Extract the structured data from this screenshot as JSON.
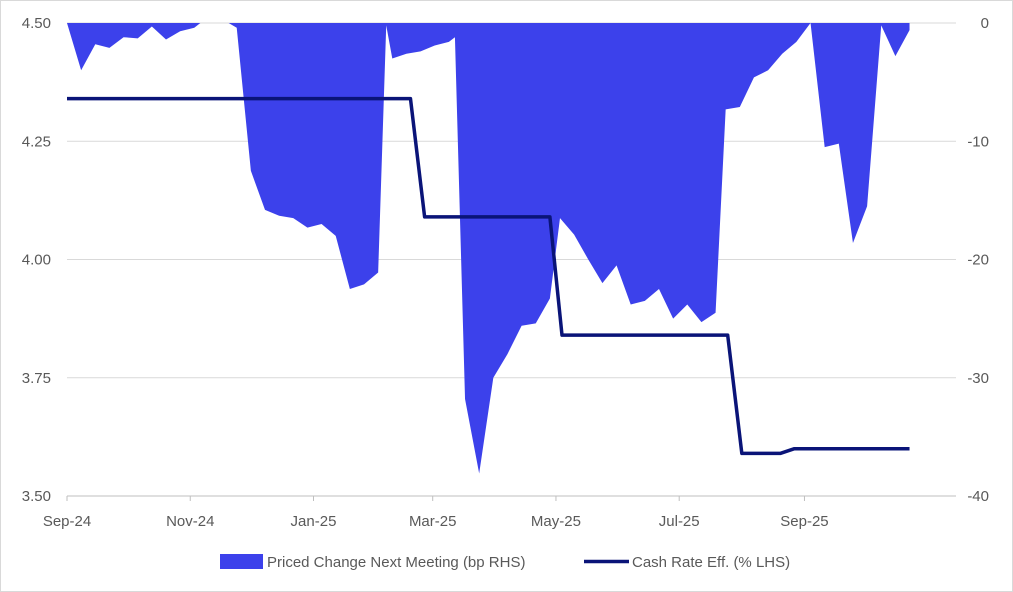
{
  "chart_data": {
    "type": "area+line",
    "x_axis": {
      "tick_labels": [
        "Sep-24",
        "Nov-24",
        "Jan-25",
        "Mar-25",
        "May-25",
        "Jul-25",
        "Sep-25"
      ],
      "tick_dates": [
        "2024-09-01",
        "2024-11-01",
        "2025-01-01",
        "2025-03-01",
        "2025-05-01",
        "2025-07-01",
        "2025-09-01"
      ],
      "range": [
        "2024-09-01",
        "2025-11-15"
      ]
    },
    "y_left": {
      "range": [
        3.5,
        4.5
      ],
      "ticks": [
        3.5,
        3.75,
        4.0,
        4.25,
        4.5
      ],
      "tick_labels": [
        "3.50",
        "3.75",
        "4.00",
        "4.25",
        "4.50"
      ]
    },
    "y_right": {
      "range": [
        -40,
        0
      ],
      "ticks": [
        -40,
        -30,
        -20,
        -10,
        0
      ],
      "tick_labels": [
        "-40",
        "-30",
        "-20",
        "-10",
        "0"
      ]
    },
    "grid": {
      "horizontal": true,
      "vertical": false
    },
    "legend": {
      "position": "bottom"
    },
    "series": [
      {
        "name": "Priced Change Next Meeting (bp RHS)",
        "kind": "area",
        "axis": "right",
        "color": "#3c41eb",
        "points": [
          [
            "2024-09-01",
            0
          ],
          [
            "2024-09-08",
            -4
          ],
          [
            "2024-09-15",
            -1.8
          ],
          [
            "2024-09-22",
            -2.1
          ],
          [
            "2024-09-29",
            -1.2
          ],
          [
            "2024-10-06",
            -1.3
          ],
          [
            "2024-10-13",
            -0.3
          ],
          [
            "2024-10-20",
            -1.4
          ],
          [
            "2024-10-27",
            -0.7
          ],
          [
            "2024-11-03",
            -0.4
          ],
          [
            "2024-11-06",
            0
          ],
          [
            "2024-11-20",
            0
          ],
          [
            "2024-11-24",
            -0.4
          ],
          [
            "2024-12-01",
            -12.5
          ],
          [
            "2024-12-08",
            -15.8
          ],
          [
            "2024-12-15",
            -16.3
          ],
          [
            "2024-12-22",
            -16.5
          ],
          [
            "2024-12-29",
            -17.3
          ],
          [
            "2025-01-05",
            -17
          ],
          [
            "2025-01-12",
            -18
          ],
          [
            "2025-01-19",
            -22.5
          ],
          [
            "2025-01-26",
            -22.1
          ],
          [
            "2025-02-02",
            -21.1
          ],
          [
            "2025-02-06",
            -0.2
          ],
          [
            "2025-02-09",
            -3
          ],
          [
            "2025-02-16",
            -2.6
          ],
          [
            "2025-02-23",
            -2.4
          ],
          [
            "2025-03-02",
            -1.9
          ],
          [
            "2025-03-09",
            -1.6
          ],
          [
            "2025-03-12",
            -1.2
          ],
          [
            "2025-03-17",
            -31.8
          ],
          [
            "2025-03-24",
            -38.1
          ],
          [
            "2025-03-31",
            -30
          ],
          [
            "2025-04-07",
            -28
          ],
          [
            "2025-04-14",
            -25.6
          ],
          [
            "2025-04-21",
            -25.4
          ],
          [
            "2025-04-28",
            -23.3
          ],
          [
            "2025-05-03",
            -16.5
          ],
          [
            "2025-05-10",
            -17.9
          ],
          [
            "2025-05-17",
            -20
          ],
          [
            "2025-05-24",
            -22
          ],
          [
            "2025-05-31",
            -20.5
          ],
          [
            "2025-06-07",
            -23.8
          ],
          [
            "2025-06-14",
            -23.5
          ],
          [
            "2025-06-21",
            -22.5
          ],
          [
            "2025-06-28",
            -25
          ],
          [
            "2025-07-05",
            -23.8
          ],
          [
            "2025-07-12",
            -25.3
          ],
          [
            "2025-07-19",
            -24.5
          ],
          [
            "2025-07-24",
            -7.3
          ],
          [
            "2025-07-31",
            -7.1
          ],
          [
            "2025-08-07",
            -4.6
          ],
          [
            "2025-08-14",
            -4
          ],
          [
            "2025-08-21",
            -2.6
          ],
          [
            "2025-08-28",
            -1.6
          ],
          [
            "2025-09-04",
            0
          ],
          [
            "2025-09-11",
            -10.5
          ],
          [
            "2025-09-18",
            -10.2
          ],
          [
            "2025-09-25",
            -18.6
          ],
          [
            "2025-10-02",
            -15.5
          ],
          [
            "2025-10-09",
            -0.2
          ],
          [
            "2025-10-16",
            -2.8
          ],
          [
            "2025-10-23",
            -0.6
          ]
        ]
      },
      {
        "name": "Cash Rate Eff. (% LHS)",
        "kind": "line",
        "axis": "left",
        "color": "#0a1478",
        "points": [
          [
            "2024-09-01",
            4.34
          ],
          [
            "2025-02-18",
            4.34
          ],
          [
            "2025-02-25",
            4.09
          ],
          [
            "2025-04-28",
            4.09
          ],
          [
            "2025-05-04",
            3.84
          ],
          [
            "2025-07-25",
            3.84
          ],
          [
            "2025-08-01",
            3.59
          ],
          [
            "2025-08-20",
            3.59
          ],
          [
            "2025-08-27",
            3.6
          ],
          [
            "2025-10-23",
            3.6
          ]
        ]
      }
    ]
  }
}
